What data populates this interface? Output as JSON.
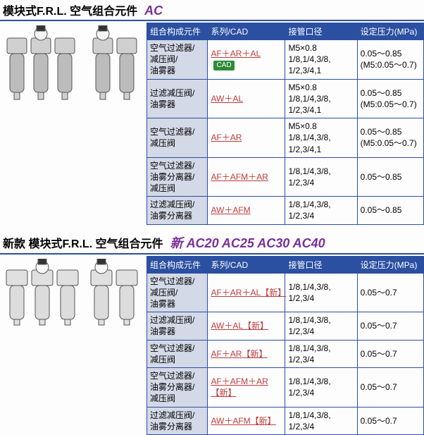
{
  "colors": {
    "primary": "#2b4fa1",
    "model_text": "#7a2f9a",
    "link_red": "#c23b3b",
    "comp_bg": "#d3d9e6",
    "cad_bg": "#2e8b37",
    "body_bg": "#fdfdfd"
  },
  "section1": {
    "title_main": "模块式F.R.L. 空气组合元件",
    "title_models": "AC",
    "headers": [
      "组合构成元件",
      "系列/CAD",
      "接管口径",
      "设定压力(MPa)"
    ],
    "cad_text": "CAD",
    "rows": [
      {
        "comp": "空气过滤器/\n减压阀/\n油雾器",
        "series": "AF＋AR＋AL",
        "has_cad": true,
        "port": "M5×0.8\n1/8,1/4,3/8,\n1/2,3/4,1",
        "pressure": "0.05～0.85\n(M5:0.05～0.7)"
      },
      {
        "comp": "过滤减压阀/\n油雾器",
        "series": "AW＋AL",
        "has_cad": false,
        "port": "M5×0.8\n1/8,1/4,3/8,\n1/2,3/4,1",
        "pressure": "0.05～0.85\n(M5:0.05～0.7)"
      },
      {
        "comp": "空气过滤器/\n减压阀",
        "series": "AF＋AR",
        "has_cad": false,
        "port": "M5×0.8\n1/8,1/4,3/8,\n1/2,3/4,1",
        "pressure": "0.05～0.85\n(M5:0.05～0.7)"
      },
      {
        "comp": "空气过滤器/\n油雾分离器/\n减压阀",
        "series": "AF＋AFM＋AR",
        "has_cad": false,
        "port": "1/8,1/4,3/8,\n1/2,3/4",
        "pressure": "0.05～0.85"
      },
      {
        "comp": "过滤减压阀/\n油雾分离器",
        "series": "AW＋AFM",
        "has_cad": false,
        "port": "1/8,1/4,3/8,\n1/2,3/4",
        "pressure": "0.05～0.85"
      }
    ]
  },
  "section2": {
    "title_main": "新款 模块式F.R.L. 空气组合元件",
    "title_models": "新 AC20 AC25 AC30 AC40",
    "headers": [
      "组合构成元件",
      "系列/CAD",
      "接管口径",
      "设定压力(MPa)"
    ],
    "rows": [
      {
        "comp": "空气过滤器/\n减压阀/\n油雾器",
        "series": "AF＋AR＋AL【新】",
        "port": "1/8,1/4,3/8,\n1/2,3/4",
        "pressure": "0.05～0.7"
      },
      {
        "comp": "过滤减压阀/\n油雾器",
        "series": "AW＋AL【新】",
        "port": "1/8,1/4,3/8,\n1/2,3/4",
        "pressure": "0.05～0.7"
      },
      {
        "comp": "空气过滤器/\n减压阀",
        "series": "AF＋AR【新】",
        "port": "1/8,1/4,3/8,\n1/2,3/4",
        "pressure": "0.05～0.7"
      },
      {
        "comp": "空气过滤器/\n油雾分离器/\n减压阀",
        "series": "AF＋AFM＋AR【新】",
        "port": "1/8,1/4,3/8,\n1/2,3/4",
        "pressure": "0.05～0.7"
      },
      {
        "comp": "过滤减压阀/\n油雾分离器",
        "series": "AW＋AFM【新】",
        "port": "1/8,1/4,3/8,\n1/2,3/4",
        "pressure": "0.05～0.7"
      }
    ]
  },
  "table_style": {
    "col_widths_pct": [
      22,
      28,
      26,
      24
    ],
    "header_bg": "#2b4fa1",
    "header_color": "#ffffff",
    "border_color": "#2b4fa1",
    "comp_col_bg": "#d3d9e6",
    "series_color": "#c23b3b",
    "font_size": 12,
    "line_height": 1.35
  }
}
